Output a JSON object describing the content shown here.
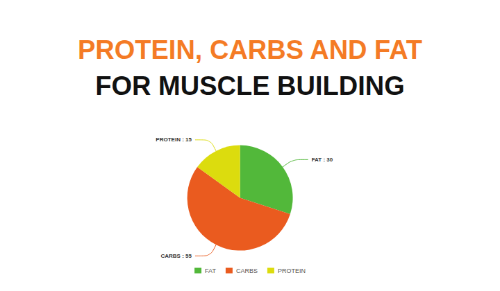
{
  "chart_data": {
    "type": "pie",
    "title": "PROTEIN, CARBS AND FAT",
    "subtitle": "FOR MUSCLE BUILDING",
    "categories": [
      "FAT",
      "CARBS",
      "PROTEIN"
    ],
    "values": [
      30,
      55,
      15
    ],
    "value_labels": [
      "FAT : 30",
      "CARBS : 55",
      "PROTEIN : 15"
    ],
    "colors": [
      "#52b83a",
      "#ea5b1f",
      "#dcdc0e"
    ],
    "data_labels": true,
    "legend": "bottom"
  }
}
